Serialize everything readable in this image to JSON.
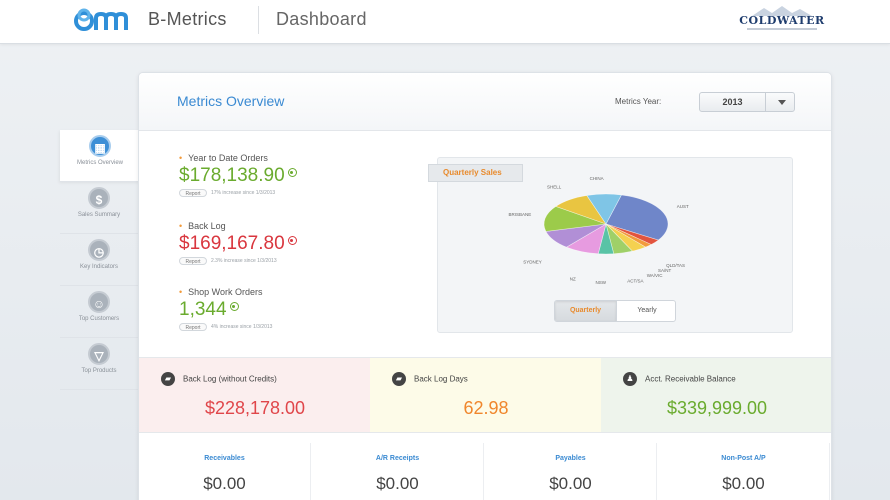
{
  "header": {
    "brand": "B-Metrics",
    "page": "Dashboard",
    "logo_icon": "bm-logo-icon",
    "company_logo": "COLDWATER"
  },
  "nav": {
    "items": [
      {
        "label": "Metrics Overview",
        "icon": "chart-icon",
        "glyph": "▦",
        "active": true
      },
      {
        "label": "Sales Summary",
        "icon": "dollar-icon",
        "glyph": "$",
        "active": false
      },
      {
        "label": "Key Indicators",
        "icon": "clock-icon",
        "glyph": "◷",
        "active": false
      },
      {
        "label": "Top Customers",
        "icon": "customers-icon",
        "glyph": "☺",
        "active": false
      },
      {
        "label": "Top Products",
        "icon": "products-icon",
        "glyph": "▽",
        "active": false
      }
    ]
  },
  "overview": {
    "title": "Metrics Overview",
    "year_label": "Metrics Year:",
    "year_value": "2013"
  },
  "metrics": [
    {
      "label": "Year to Date Orders",
      "value": "$178,138.90",
      "report": "Report",
      "note": "17% increase since 1/3/2013",
      "color": "#6aab2e"
    },
    {
      "label": "Back Log",
      "value": "$169,167.80",
      "report": "Report",
      "note": "2.3% increase since 1/3/2013",
      "color": "#d9363e"
    },
    {
      "label": "Shop Work Orders",
      "value": "1,344",
      "report": "Report",
      "note": "4% increase since 1/3/2013",
      "color": "#6aab2e"
    }
  ],
  "chart": {
    "tab_label": "Quarterly Sales",
    "toggle": {
      "quarterly": "Quarterly",
      "yearly": "Yearly",
      "selected": "quarterly"
    }
  },
  "chart_data": {
    "type": "pie",
    "title": "",
    "slices": [
      {
        "label": "AUST",
        "value": 30,
        "color": "#6f86c9"
      },
      {
        "label": "QLD/TAS",
        "value": 3,
        "color": "#e2543e"
      },
      {
        "label": "SA/NT",
        "value": 2,
        "color": "#f29b3c"
      },
      {
        "label": "WA/VIC",
        "value": 4,
        "color": "#f4d150"
      },
      {
        "label": "ACT/SA",
        "value": 5,
        "color": "#9fd068"
      },
      {
        "label": "NSW",
        "value": 4,
        "color": "#59c3a6"
      },
      {
        "label": "NZ",
        "value": 9,
        "color": "#e79be0"
      },
      {
        "label": "SYDNEY",
        "value": 10,
        "color": "#b18fd6"
      },
      {
        "label": "BRISBANE",
        "value": 14,
        "color": "#9ccb4a"
      },
      {
        "label": "SHELL",
        "value": 10,
        "color": "#e9c541"
      },
      {
        "label": "CHINA",
        "value": 9,
        "color": "#7fc5e6"
      }
    ]
  },
  "kpis": [
    {
      "label": "Back Log (without Credits)",
      "value": "$228,178.00",
      "icon": "truck-icon",
      "glyph": "▰"
    },
    {
      "label": "Back Log Days",
      "value": "62.98",
      "icon": "truck-icon",
      "glyph": "▰"
    },
    {
      "label": "Acct. Receivable Balance",
      "value": "$339,999.00",
      "icon": "person-icon",
      "glyph": "♟"
    }
  ],
  "tiles": [
    {
      "label": "Receivables",
      "value": "$0.00"
    },
    {
      "label": "A/R Receipts",
      "value": "$0.00"
    },
    {
      "label": "Payables",
      "value": "$0.00"
    },
    {
      "label": "Non-Post A/P",
      "value": "$0.00"
    }
  ]
}
